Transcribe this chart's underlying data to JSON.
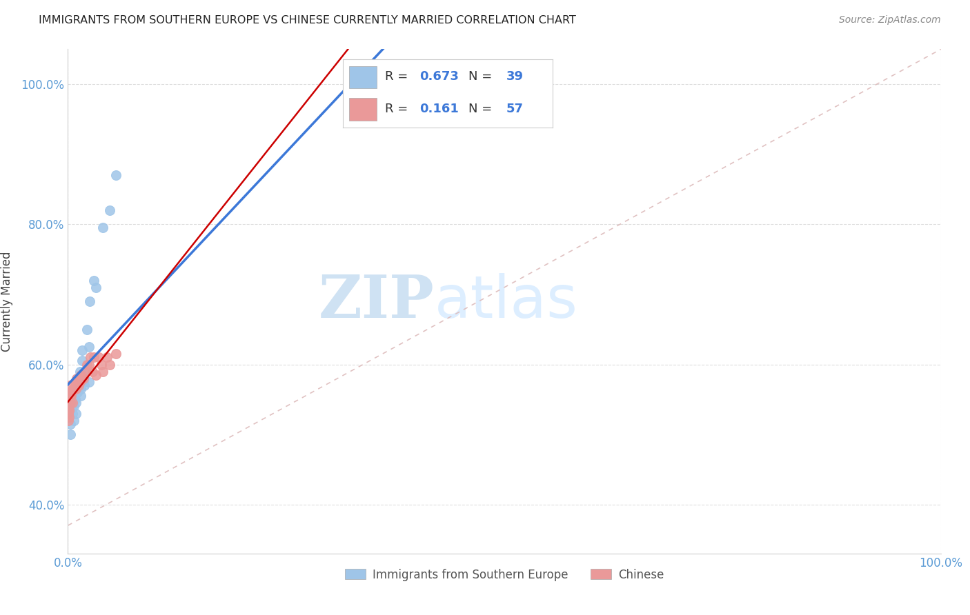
{
  "title": "IMMIGRANTS FROM SOUTHERN EUROPE VS CHINESE CURRENTLY MARRIED CORRELATION CHART",
  "source": "Source: ZipAtlas.com",
  "ylabel": "Currently Married",
  "legend_label_blue": "Immigrants from Southern Europe",
  "legend_label_pink": "Chinese",
  "blue_color": "#9fc5e8",
  "pink_color": "#ea9999",
  "blue_line_color": "#3c78d8",
  "pink_line_color": "#cc0000",
  "diag_line_color": "#cccccc",
  "background_color": "#ffffff",
  "grid_color": "#dddddd",
  "watermark_zip": "ZIP",
  "watermark_atlas": "atlas",
  "watermark_color": "#cfe2f3",
  "r_blue": "0.673",
  "n_blue": "39",
  "r_pink": "0.161",
  "n_pink": "57",
  "xlim": [
    0.0,
    1.0
  ],
  "ylim": [
    0.33,
    1.05
  ],
  "ytick_values": [
    0.4,
    0.6,
    0.8,
    1.0
  ],
  "xtick_values": [
    0.0,
    1.0
  ],
  "blue_x": [
    0.002,
    0.003,
    0.003,
    0.003,
    0.004,
    0.004,
    0.005,
    0.005,
    0.005,
    0.006,
    0.006,
    0.007,
    0.007,
    0.008,
    0.009,
    0.009,
    0.01,
    0.01,
    0.011,
    0.012,
    0.013,
    0.014,
    0.015,
    0.015,
    0.016,
    0.016,
    0.018,
    0.019,
    0.02,
    0.022,
    0.024,
    0.024,
    0.025,
    0.03,
    0.032,
    0.04,
    0.048,
    0.055,
    0.385
  ],
  "blue_y": [
    0.53,
    0.545,
    0.515,
    0.5,
    0.545,
    0.555,
    0.54,
    0.53,
    0.545,
    0.555,
    0.555,
    0.54,
    0.52,
    0.55,
    0.545,
    0.53,
    0.56,
    0.56,
    0.56,
    0.565,
    0.58,
    0.59,
    0.555,
    0.565,
    0.605,
    0.62,
    0.575,
    0.57,
    0.59,
    0.65,
    0.625,
    0.575,
    0.69,
    0.72,
    0.71,
    0.795,
    0.82,
    0.87,
    1.0
  ],
  "pink_x": [
    0.0002,
    0.0003,
    0.0003,
    0.0004,
    0.0005,
    0.0005,
    0.0006,
    0.0006,
    0.0007,
    0.0007,
    0.0008,
    0.0008,
    0.0009,
    0.0009,
    0.001,
    0.001,
    0.001,
    0.0011,
    0.0012,
    0.0012,
    0.0013,
    0.0014,
    0.0015,
    0.0015,
    0.0016,
    0.002,
    0.002,
    0.003,
    0.003,
    0.004,
    0.004,
    0.005,
    0.006,
    0.007,
    0.008,
    0.009,
    0.01,
    0.011,
    0.012,
    0.013,
    0.014,
    0.015,
    0.016,
    0.018,
    0.02,
    0.022,
    0.024,
    0.026,
    0.028,
    0.03,
    0.032,
    0.035,
    0.038,
    0.04,
    0.045,
    0.048,
    0.055
  ],
  "pink_y": [
    0.54,
    0.535,
    0.53,
    0.52,
    0.535,
    0.545,
    0.545,
    0.54,
    0.545,
    0.555,
    0.535,
    0.54,
    0.525,
    0.55,
    0.545,
    0.535,
    0.54,
    0.55,
    0.55,
    0.555,
    0.555,
    0.54,
    0.545,
    0.545,
    0.535,
    0.56,
    0.57,
    0.555,
    0.545,
    0.56,
    0.555,
    0.545,
    0.565,
    0.565,
    0.575,
    0.565,
    0.58,
    0.57,
    0.57,
    0.58,
    0.575,
    0.585,
    0.58,
    0.58,
    0.59,
    0.6,
    0.6,
    0.61,
    0.59,
    0.61,
    0.585,
    0.61,
    0.6,
    0.59,
    0.61,
    0.6,
    0.615
  ]
}
